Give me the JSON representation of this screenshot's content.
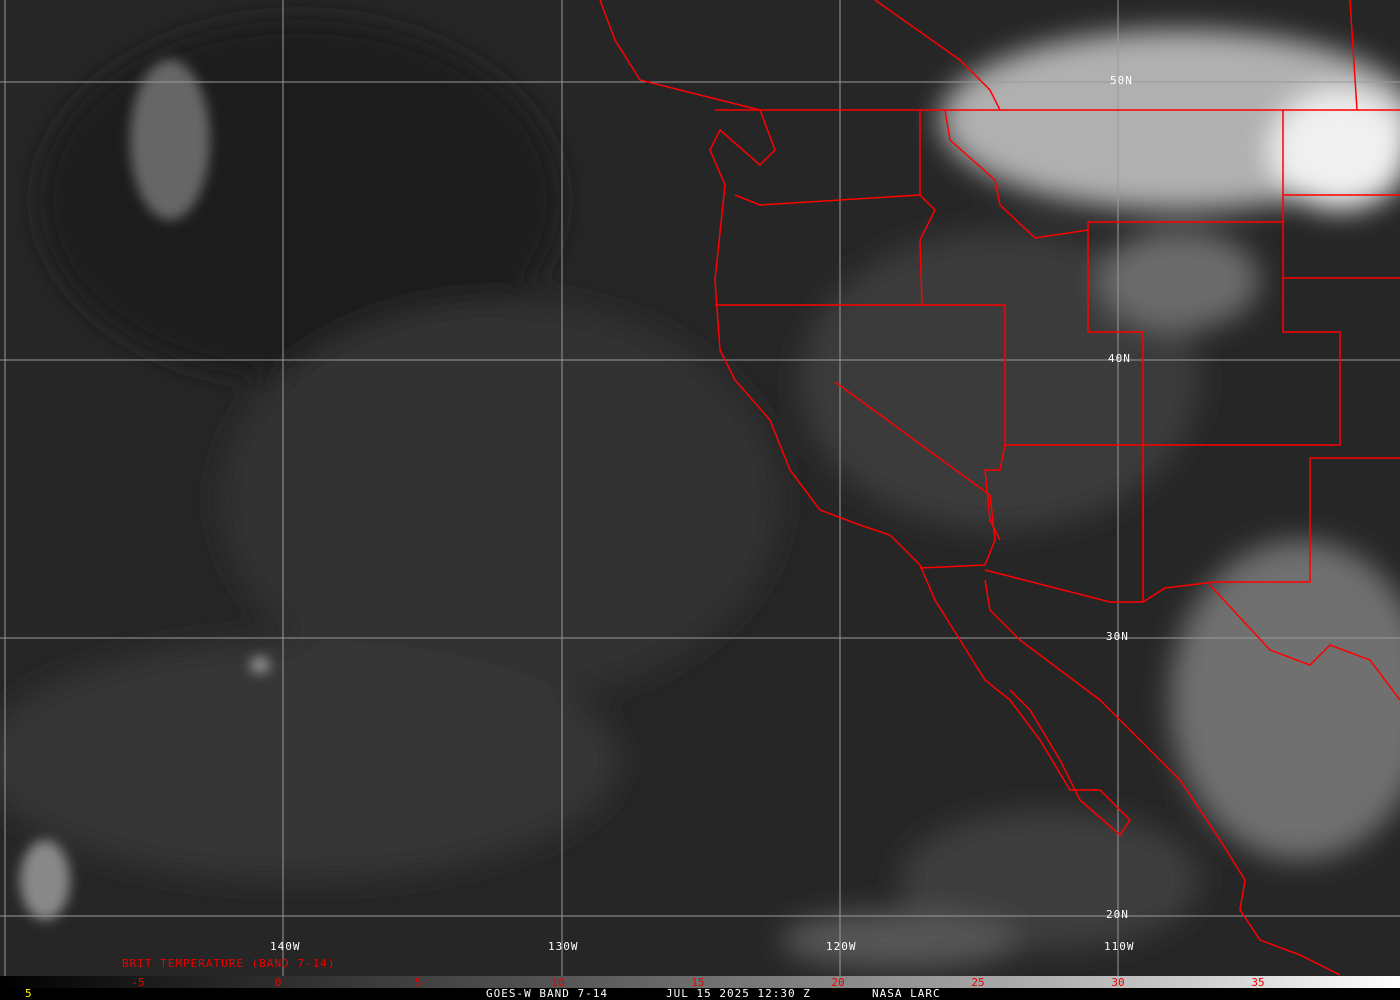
{
  "map": {
    "lat_labels": [
      "50N",
      "40N",
      "30N",
      "20N"
    ],
    "lon_labels": [
      "140W",
      "130W",
      "120W",
      "110W"
    ],
    "boundary_color": "#ff0000",
    "grid_color": "#9a9a9a"
  },
  "colorbar": {
    "title": "BRIT TEMPERATURE (BAND 7-14)",
    "ticks": [
      "-5",
      "0",
      "5",
      "10",
      "15",
      "20",
      "25",
      "30",
      "35"
    ],
    "left_value": "5"
  },
  "footer": {
    "product": "GOES-W BAND 7-14",
    "datetime": "JUL 15 2025 12:30 Z",
    "source": "NASA LARC"
  }
}
